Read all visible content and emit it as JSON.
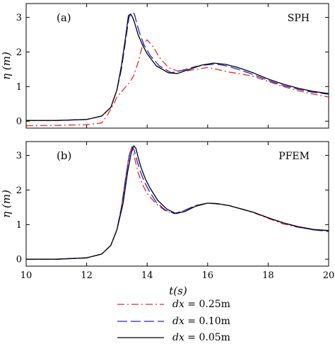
{
  "chart_data": [
    {
      "type": "line",
      "panel_label": "(a)",
      "method_label": "SPH",
      "ylabel": "η (m)",
      "xlim": [
        10,
        20
      ],
      "ylim": [
        -0.2,
        3.4
      ],
      "y_ticks": [
        "0",
        "1",
        "2",
        "3"
      ],
      "series": [
        {
          "name": "dx = 0.25m",
          "color": "#e8262a",
          "dash": "dashdot",
          "x": [
            10.0,
            11.0,
            12.0,
            12.5,
            12.7,
            12.9,
            13.0,
            13.2,
            13.4,
            13.55,
            13.7,
            13.85,
            14.0,
            14.2,
            14.4,
            14.7,
            15.0,
            15.3,
            15.6,
            16.0,
            16.3,
            16.7,
            17.0,
            17.5,
            18.0,
            18.5,
            19.0,
            19.5,
            20.0
          ],
          "y": [
            -0.13,
            -0.12,
            -0.1,
            -0.05,
            0.2,
            0.5,
            0.7,
            0.9,
            1.1,
            1.3,
            1.7,
            2.2,
            2.35,
            2.15,
            1.85,
            1.55,
            1.45,
            1.45,
            1.5,
            1.55,
            1.5,
            1.42,
            1.38,
            1.3,
            1.15,
            1.0,
            0.88,
            0.78,
            0.7
          ]
        },
        {
          "name": "dx = 0.10m",
          "color": "#2424c8",
          "dash": "dash",
          "x": [
            10.0,
            11.0,
            12.0,
            12.5,
            12.8,
            13.0,
            13.15,
            13.3,
            13.4,
            13.5,
            13.58,
            13.65,
            13.75,
            13.9,
            14.1,
            14.4,
            14.8,
            15.2,
            15.6,
            16.0,
            16.3,
            16.6,
            17.0,
            17.5,
            18.0,
            18.5,
            19.0,
            19.5,
            20.0
          ],
          "y": [
            0.02,
            0.02,
            0.05,
            0.15,
            0.4,
            0.9,
            1.5,
            2.4,
            3.0,
            3.15,
            3.1,
            2.85,
            2.55,
            2.2,
            1.9,
            1.6,
            1.4,
            1.48,
            1.58,
            1.63,
            1.65,
            1.6,
            1.5,
            1.35,
            1.18,
            1.03,
            0.92,
            0.83,
            0.78
          ]
        },
        {
          "name": "dx = 0.05m",
          "color": "#000000",
          "dash": "solid",
          "x": [
            10.0,
            11.0,
            12.0,
            12.5,
            12.8,
            13.0,
            13.15,
            13.3,
            13.38,
            13.45,
            13.52,
            13.6,
            13.7,
            13.85,
            14.0,
            14.3,
            14.7,
            15.0,
            15.4,
            15.8,
            16.2,
            16.6,
            17.0,
            17.5,
            18.0,
            18.5,
            19.0,
            19.5,
            20.0
          ],
          "y": [
            0.02,
            0.02,
            0.05,
            0.15,
            0.4,
            0.9,
            1.6,
            2.5,
            3.05,
            3.1,
            3.0,
            2.8,
            2.5,
            2.2,
            1.95,
            1.6,
            1.4,
            1.38,
            1.5,
            1.62,
            1.68,
            1.64,
            1.55,
            1.4,
            1.22,
            1.07,
            0.95,
            0.86,
            0.8
          ]
        }
      ]
    },
    {
      "type": "line",
      "panel_label": "(b)",
      "method_label": "PFEM",
      "ylabel": "η (m)",
      "xlabel": "t(s)",
      "xlim": [
        10,
        20
      ],
      "ylim": [
        -0.2,
        3.4
      ],
      "x_ticks": [
        "10",
        "12",
        "14",
        "16",
        "18",
        "20"
      ],
      "y_ticks": [
        "0",
        "1",
        "2",
        "3"
      ],
      "series": [
        {
          "name": "dx = 0.25m",
          "color": "#e8262a",
          "dash": "dashdot",
          "x": [
            10.0,
            11.0,
            12.0,
            12.5,
            12.8,
            13.0,
            13.15,
            13.3,
            13.4,
            13.48,
            13.55,
            13.62,
            13.7,
            13.85,
            14.0,
            14.3,
            14.6,
            14.9,
            15.2,
            15.6,
            16.0,
            16.3,
            16.7,
            17.0,
            17.5,
            18.0,
            18.5,
            19.0,
            19.5,
            20.0
          ],
          "y": [
            0.0,
            0.0,
            0.04,
            0.15,
            0.4,
            0.85,
            1.5,
            2.4,
            3.0,
            3.2,
            3.05,
            2.8,
            2.5,
            2.15,
            1.9,
            1.6,
            1.4,
            1.32,
            1.4,
            1.55,
            1.62,
            1.6,
            1.55,
            1.48,
            1.35,
            1.18,
            1.02,
            0.92,
            0.85,
            0.82
          ]
        },
        {
          "name": "dx = 0.10m",
          "color": "#2424c8",
          "dash": "dash",
          "x": [
            10.0,
            11.0,
            12.0,
            12.5,
            12.8,
            13.0,
            13.15,
            13.3,
            13.42,
            13.5,
            13.57,
            13.65,
            13.75,
            13.9,
            14.05,
            14.3,
            14.6,
            14.9,
            15.2,
            15.6,
            16.0,
            16.3,
            16.7,
            17.0,
            17.5,
            18.0,
            18.5,
            19.0,
            19.5,
            20.0
          ],
          "y": [
            0.0,
            0.0,
            0.04,
            0.15,
            0.4,
            0.85,
            1.5,
            2.4,
            3.05,
            3.25,
            3.15,
            2.9,
            2.6,
            2.25,
            2.0,
            1.65,
            1.42,
            1.32,
            1.4,
            1.55,
            1.62,
            1.6,
            1.55,
            1.48,
            1.36,
            1.2,
            1.05,
            0.93,
            0.85,
            0.8
          ]
        },
        {
          "name": "dx = 0.05m",
          "color": "#000000",
          "dash": "solid",
          "x": [
            10.0,
            11.0,
            12.0,
            12.5,
            12.8,
            13.0,
            13.2,
            13.35,
            13.48,
            13.56,
            13.63,
            13.7,
            13.8,
            13.95,
            14.1,
            14.35,
            14.65,
            14.95,
            15.25,
            15.6,
            16.0,
            16.3,
            16.7,
            17.0,
            17.5,
            18.0,
            18.5,
            19.0,
            19.5,
            20.0
          ],
          "y": [
            0.0,
            0.0,
            0.04,
            0.15,
            0.4,
            0.85,
            1.6,
            2.5,
            3.1,
            3.28,
            3.2,
            2.95,
            2.65,
            2.3,
            2.05,
            1.7,
            1.45,
            1.32,
            1.38,
            1.53,
            1.62,
            1.61,
            1.55,
            1.48,
            1.36,
            1.2,
            1.05,
            0.94,
            0.86,
            0.83
          ]
        }
      ]
    }
  ],
  "legend": {
    "placement": "bottom-center",
    "entries": [
      {
        "var": "dx",
        "value": " = 0.25m",
        "color": "#e8262a",
        "dash": "dashdot"
      },
      {
        "var": "dx",
        "value": " = 0.10m",
        "color": "#2424c8",
        "dash": "dash"
      },
      {
        "var": "dx",
        "value": " = 0.05m",
        "color": "#000000",
        "dash": "solid"
      }
    ]
  }
}
